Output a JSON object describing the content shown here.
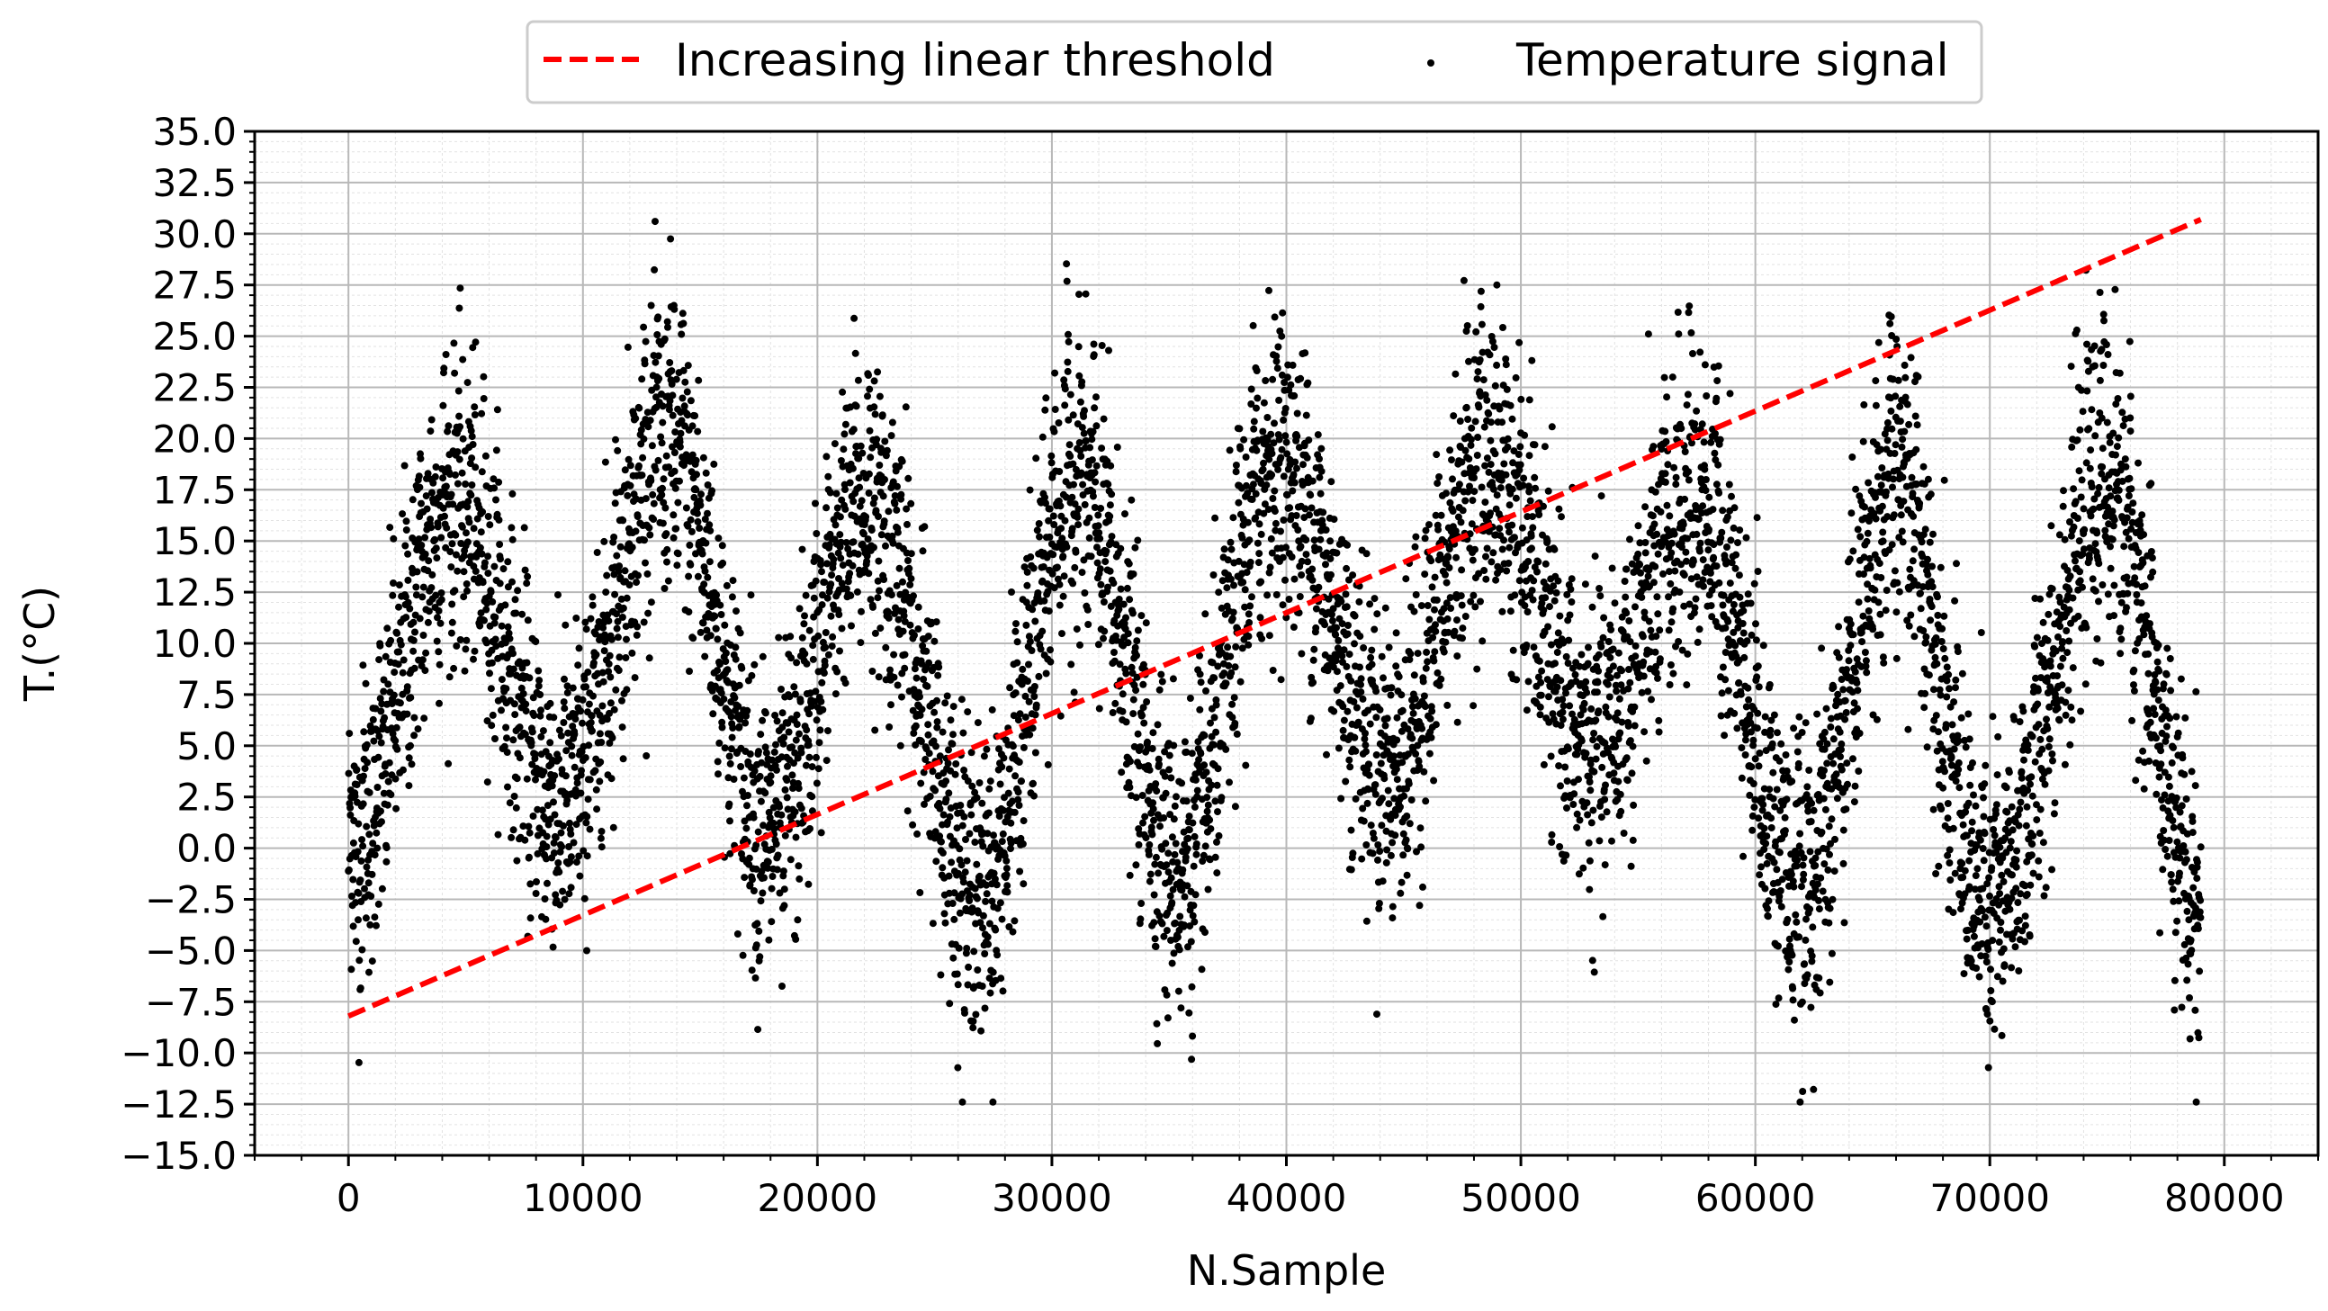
{
  "chart_data": {
    "type": "scatter",
    "title": "",
    "xlabel": "N.Sample",
    "ylabel": "T.($^\\circ$C)",
    "ylabel_display": "T.(°C)",
    "xlim": [
      -4000,
      84000
    ],
    "ylim": [
      -15.0,
      35.0
    ],
    "xticks": [
      0,
      10000,
      20000,
      30000,
      40000,
      50000,
      60000,
      70000,
      80000
    ],
    "yticks": [
      -15.0,
      -12.5,
      -10.0,
      -7.5,
      -5.0,
      -2.5,
      0.0,
      2.5,
      5.0,
      7.5,
      10.0,
      12.5,
      15.0,
      17.5,
      20.0,
      22.5,
      25.0,
      27.5,
      30.0,
      32.5,
      35.0
    ],
    "grid": "major and minor",
    "legend_position": "top-center",
    "series": [
      {
        "name": "Increasing linear threshold",
        "kind": "line",
        "style": "dashed",
        "color": "#ff0000",
        "x": [
          0,
          79000
        ],
        "y": [
          -8.2,
          30.7
        ]
      },
      {
        "name": "Temperature signal",
        "kind": "scatter",
        "color": "#000000",
        "sample_count": 79000,
        "annual_cycle": [
          {
            "x": 0,
            "y": 0.0
          },
          {
            "x": 4500,
            "y": 17.0
          },
          {
            "x": 9000,
            "y": 2.0
          },
          {
            "x": 13500,
            "y": 20.0
          },
          {
            "x": 18000,
            "y": 1.0
          },
          {
            "x": 22000,
            "y": 17.0
          },
          {
            "x": 27000,
            "y": -2.0
          },
          {
            "x": 31000,
            "y": 18.0
          },
          {
            "x": 35500,
            "y": -1.0
          },
          {
            "x": 39500,
            "y": 19.0
          },
          {
            "x": 44500,
            "y": 4.0
          },
          {
            "x": 48500,
            "y": 19.0
          },
          {
            "x": 53000,
            "y": 5.0
          },
          {
            "x": 57500,
            "y": 17.0
          },
          {
            "x": 62000,
            "y": -2.0
          },
          {
            "x": 66000,
            "y": 18.0
          },
          {
            "x": 70000,
            "y": -3.0
          },
          {
            "x": 75000,
            "y": 18.0
          },
          {
            "x": 79000,
            "y": -3.0
          }
        ]
      }
    ]
  }
}
